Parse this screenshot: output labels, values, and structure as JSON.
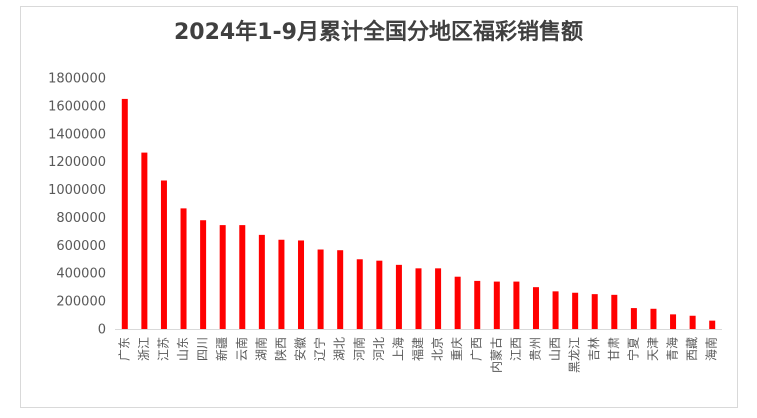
{
  "chart_data": {
    "type": "bar",
    "title": "2024年1-9月累计全国分地区福彩销售额",
    "categories": [
      "广东",
      "浙江",
      "江苏",
      "山东",
      "四川",
      "新疆",
      "云南",
      "湖南",
      "陕西",
      "安徽",
      "辽宁",
      "湖北",
      "河南",
      "河北",
      "上海",
      "福建",
      "北京",
      "重庆",
      "广西",
      "内蒙古",
      "江西",
      "贵州",
      "山西",
      "黑龙江",
      "吉林",
      "甘肃",
      "宁夏",
      "天津",
      "青海",
      "西藏",
      "海南"
    ],
    "values": [
      1650000,
      1265000,
      1065000,
      865000,
      780000,
      745000,
      745000,
      675000,
      640000,
      635000,
      570000,
      565000,
      500000,
      490000,
      460000,
      435000,
      435000,
      375000,
      345000,
      340000,
      340000,
      300000,
      270000,
      260000,
      250000,
      245000,
      150000,
      145000,
      105000,
      95000,
      60000
    ],
    "yticks": [
      "0",
      "200000",
      "400000",
      "600000",
      "800000",
      "1000000",
      "1200000",
      "1400000",
      "1600000",
      "1800000"
    ],
    "ylim": [
      0,
      1800000
    ],
    "bar_color": "#ff0000",
    "grid": false,
    "legend": "none"
  }
}
